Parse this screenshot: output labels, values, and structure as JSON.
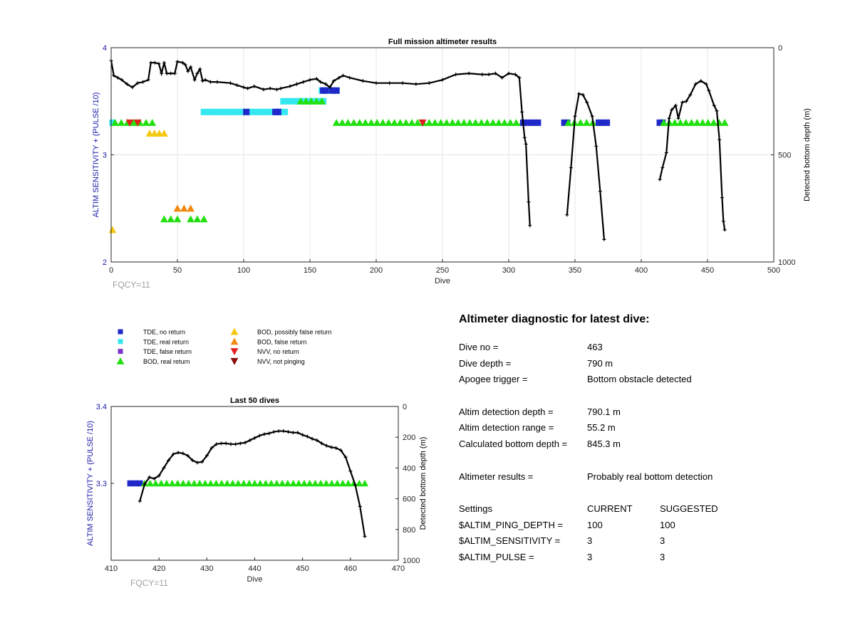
{
  "colors": {
    "tde_no_return": "#1f28c8",
    "tde_real_return": "#35e8f0",
    "tde_false_return": "#7a35c8",
    "bod_real_return": "#22e010",
    "bod_possibly_false": "#f5c810",
    "bod_false": "#f08a10",
    "nvv_no_return": "#e02020",
    "nvv_not_pinging": "#8a1010",
    "depth_line": "#000000",
    "axis_left": "#1a1aa8",
    "fqcy": "#a0a0a0"
  },
  "legend": [
    {
      "label": "TDE, no return",
      "key": "tde_no_return",
      "marker": "square"
    },
    {
      "label": "TDE, real return",
      "key": "tde_real_return",
      "marker": "square"
    },
    {
      "label": "TDE, false return",
      "key": "tde_false_return",
      "marker": "square"
    },
    {
      "label": "BOD, real return",
      "key": "bod_real_return",
      "marker": "triangle-up"
    },
    {
      "label": "BOD, possibly false return",
      "key": "bod_possibly_false",
      "marker": "triangle-up"
    },
    {
      "label": "BOD, false return",
      "key": "bod_false",
      "marker": "triangle-up"
    },
    {
      "label": "NVV, no return",
      "key": "nvv_no_return",
      "marker": "triangle-down"
    },
    {
      "label": "NVV, not pinging",
      "key": "nvv_not_pinging",
      "marker": "triangle-down"
    }
  ],
  "chart_data": [
    {
      "type": "scatter",
      "title": "Full mission altimeter results",
      "xlabel": "Dive",
      "ylabel": "ALTIM SENSITIVITY + (PULSE /10)",
      "y2label": "Detected bottom depth (m)",
      "note": "FQCY=11",
      "xlim": [
        0,
        500
      ],
      "ylim": [
        2,
        4
      ],
      "y2lim": [
        0,
        1000
      ],
      "y2_reversed": true,
      "xticks": [
        0,
        50,
        100,
        150,
        200,
        250,
        300,
        350,
        400,
        450,
        500
      ],
      "yticks": [
        2,
        3,
        4
      ],
      "y2ticks": [
        0,
        500,
        1000
      ],
      "grid": true,
      "marker_runs": [
        {
          "key": "tde_real_return",
          "marker": "square",
          "y": 3.3,
          "x_from": 1,
          "x_to": 2
        },
        {
          "key": "bod_real_return",
          "marker": "triangle-up",
          "y": 3.3,
          "x_from": 3,
          "x_to": 31
        },
        {
          "key": "nvv_no_return",
          "marker": "triangle-down",
          "y": 3.3,
          "x_from": 14,
          "x_to": 20
        },
        {
          "key": "bod_possibly_false",
          "marker": "triangle-up",
          "y": 3.2,
          "x_from": 29,
          "x_to": 40
        },
        {
          "key": "bod_possibly_false",
          "marker": "triangle-up",
          "y": 2.3,
          "x_from": 1,
          "x_to": 3
        },
        {
          "key": "bod_false",
          "marker": "triangle-up",
          "y": 2.5,
          "x_from": 50,
          "x_to": 60
        },
        {
          "key": "bod_real_return",
          "marker": "triangle-up",
          "y": 2.4,
          "x_from": 40,
          "x_to": 50
        },
        {
          "key": "bod_real_return",
          "marker": "triangle-up",
          "y": 2.4,
          "x_from": 60,
          "x_to": 70
        },
        {
          "key": "tde_real_return",
          "marker": "square",
          "y": 3.4,
          "x_from": 70,
          "x_to": 131
        },
        {
          "key": "tde_no_return",
          "marker": "square",
          "y": 3.4,
          "x_from": 102,
          "x_to": 103
        },
        {
          "key": "tde_no_return",
          "marker": "square",
          "y": 3.4,
          "x_from": 124,
          "x_to": 126
        },
        {
          "key": "tde_real_return",
          "marker": "square",
          "y": 3.5,
          "x_from": 130,
          "x_to": 160
        },
        {
          "key": "bod_real_return",
          "marker": "triangle-up",
          "y": 3.5,
          "x_from": 143,
          "x_to": 159
        },
        {
          "key": "tde_real_return",
          "marker": "square",
          "y": 3.6,
          "x_from": 159,
          "x_to": 170
        },
        {
          "key": "tde_no_return",
          "marker": "square",
          "y": 3.6,
          "x_from": 160,
          "x_to": 162
        },
        {
          "key": "tde_no_return",
          "marker": "square",
          "y": 3.6,
          "x_from": 167,
          "x_to": 170
        },
        {
          "key": "bod_real_return",
          "marker": "triangle-up",
          "y": 3.3,
          "x_from": 170,
          "x_to": 310
        },
        {
          "key": "nvv_no_return",
          "marker": "triangle-down",
          "y": 3.3,
          "x_from": 235,
          "x_to": 235
        },
        {
          "key": "tde_no_return",
          "marker": "square",
          "y": 3.3,
          "x_from": 311,
          "x_to": 322
        },
        {
          "key": "tde_no_return",
          "marker": "square",
          "y": 3.3,
          "x_from": 342,
          "x_to": 344
        },
        {
          "key": "bod_real_return",
          "marker": "triangle-up",
          "y": 3.3,
          "x_from": 345,
          "x_to": 368
        },
        {
          "key": "tde_no_return",
          "marker": "square",
          "y": 3.3,
          "x_from": 368,
          "x_to": 374
        },
        {
          "key": "tde_no_return",
          "marker": "square",
          "y": 3.3,
          "x_from": 414,
          "x_to": 416
        },
        {
          "key": "bod_real_return",
          "marker": "triangle-up",
          "y": 3.3,
          "x_from": 417,
          "x_to": 463
        }
      ],
      "depth_series": [
        [
          [
            0,
            60
          ],
          [
            2,
            130
          ],
          [
            5,
            140
          ],
          [
            8,
            150
          ],
          [
            12,
            170
          ],
          [
            16,
            185
          ],
          [
            20,
            165
          ],
          [
            24,
            160
          ],
          [
            28,
            150
          ],
          [
            30,
            70
          ],
          [
            33,
            70
          ],
          [
            36,
            75
          ],
          [
            38,
            120
          ],
          [
            40,
            70
          ],
          [
            42,
            120
          ],
          [
            45,
            120
          ],
          [
            48,
            120
          ],
          [
            50,
            65
          ],
          [
            54,
            70
          ],
          [
            56,
            80
          ],
          [
            58,
            110
          ],
          [
            60,
            90
          ],
          [
            63,
            150
          ],
          [
            65,
            120
          ],
          [
            67,
            100
          ],
          [
            69,
            155
          ],
          [
            71,
            150
          ],
          [
            75,
            160
          ],
          [
            80,
            160
          ],
          [
            90,
            165
          ],
          [
            95,
            175
          ],
          [
            100,
            185
          ],
          [
            103,
            190
          ],
          [
            108,
            180
          ],
          [
            115,
            195
          ],
          [
            120,
            190
          ],
          [
            125,
            195
          ],
          [
            128,
            190
          ],
          [
            135,
            180
          ],
          [
            140,
            170
          ],
          [
            145,
            160
          ],
          [
            150,
            150
          ],
          [
            155,
            145
          ],
          [
            158,
            160
          ],
          [
            162,
            170
          ],
          [
            165,
            185
          ],
          [
            168,
            155
          ],
          [
            172,
            140
          ],
          [
            175,
            130
          ],
          [
            180,
            140
          ],
          [
            190,
            155
          ],
          [
            200,
            165
          ],
          [
            210,
            165
          ],
          [
            220,
            165
          ],
          [
            230,
            170
          ],
          [
            240,
            165
          ],
          [
            250,
            150
          ],
          [
            260,
            125
          ],
          [
            270,
            120
          ],
          [
            280,
            125
          ],
          [
            285,
            125
          ],
          [
            290,
            120
          ],
          [
            295,
            140
          ],
          [
            300,
            120
          ],
          [
            305,
            125
          ],
          [
            308,
            140
          ],
          [
            310,
            300
          ],
          [
            312,
            420
          ],
          [
            313,
            450
          ],
          [
            315,
            720
          ],
          [
            316,
            830
          ]
        ],
        [
          [
            344,
            780
          ],
          [
            347,
            560
          ],
          [
            350,
            320
          ],
          [
            353,
            215
          ],
          [
            356,
            220
          ],
          [
            359,
            255
          ],
          [
            363,
            320
          ],
          [
            366,
            460
          ],
          [
            369,
            670
          ],
          [
            372,
            895
          ]
        ],
        [
          [
            414,
            615
          ],
          [
            416,
            560
          ],
          [
            419,
            490
          ],
          [
            421,
            330
          ],
          [
            423,
            290
          ],
          [
            426,
            270
          ],
          [
            428,
            330
          ],
          [
            431,
            255
          ],
          [
            434,
            250
          ],
          [
            437,
            220
          ],
          [
            441,
            170
          ],
          [
            445,
            155
          ],
          [
            449,
            170
          ],
          [
            451,
            200
          ],
          [
            455,
            270
          ],
          [
            457,
            295
          ],
          [
            459,
            430
          ],
          [
            461,
            700
          ],
          [
            462,
            810
          ],
          [
            463,
            850
          ]
        ]
      ]
    },
    {
      "type": "scatter",
      "title": "Last 50 dives",
      "xlabel": "Dive",
      "ylabel": "ALTIM SENSITIVITY + (PULSE /10)",
      "y2label": "Detected bottom depth (m)",
      "note": "FQCY=11",
      "xlim": [
        410,
        470
      ],
      "ylim": [
        3.2,
        3.4
      ],
      "y2lim": [
        0,
        1000
      ],
      "y2_reversed": true,
      "xticks": [
        410,
        420,
        430,
        440,
        450,
        460,
        470
      ],
      "yticks": [
        3.3,
        3.4
      ],
      "y2ticks": [
        0,
        200,
        400,
        600,
        800,
        1000
      ],
      "grid": false,
      "marker_runs": [
        {
          "key": "tde_no_return",
          "marker": "square",
          "y": 3.3,
          "x_from": 414,
          "x_to": 416
        },
        {
          "key": "bod_real_return",
          "marker": "triangle-up",
          "y": 3.3,
          "x_from": 417,
          "x_to": 463
        }
      ],
      "depth_series": [
        [
          [
            416,
            615
          ],
          [
            417,
            505
          ],
          [
            418,
            460
          ],
          [
            419,
            470
          ],
          [
            420,
            450
          ],
          [
            421,
            400
          ],
          [
            422,
            350
          ],
          [
            423,
            310
          ],
          [
            424,
            300
          ],
          [
            425,
            305
          ],
          [
            426,
            320
          ],
          [
            427,
            350
          ],
          [
            428,
            365
          ],
          [
            429,
            360
          ],
          [
            430,
            320
          ],
          [
            431,
            270
          ],
          [
            432,
            245
          ],
          [
            433,
            240
          ],
          [
            434,
            240
          ],
          [
            435,
            245
          ],
          [
            436,
            245
          ],
          [
            437,
            240
          ],
          [
            438,
            235
          ],
          [
            439,
            220
          ],
          [
            440,
            205
          ],
          [
            441,
            190
          ],
          [
            442,
            180
          ],
          [
            443,
            175
          ],
          [
            444,
            165
          ],
          [
            445,
            160
          ],
          [
            446,
            160
          ],
          [
            447,
            165
          ],
          [
            448,
            170
          ],
          [
            449,
            170
          ],
          [
            450,
            185
          ],
          [
            451,
            195
          ],
          [
            452,
            210
          ],
          [
            453,
            220
          ],
          [
            454,
            240
          ],
          [
            455,
            255
          ],
          [
            456,
            265
          ],
          [
            457,
            270
          ],
          [
            458,
            285
          ],
          [
            459,
            330
          ],
          [
            460,
            420
          ],
          [
            461,
            510
          ],
          [
            462,
            650
          ],
          [
            463,
            845
          ]
        ]
      ]
    }
  ],
  "diagnostic": {
    "title": "Altimeter diagnostic for latest dive:",
    "dive_no_label": "Dive no =",
    "dive_no": "463",
    "dive_depth_label": "Dive depth =",
    "dive_depth": "790 m",
    "apogee_label": "Apogee trigger =",
    "apogee": "Bottom obstacle detected",
    "altim_depth_label": "Altim detection depth =",
    "altim_depth": "790.1 m",
    "altim_range_label": "Altim detection range =",
    "altim_range": "55.2 m",
    "calc_bottom_label": "Calculated bottom depth =",
    "calc_bottom": "845.3 m",
    "results_label": "Altimeter results =",
    "results": "Probably real bottom detection",
    "settings_label": "Settings",
    "current_label": "CURRENT",
    "suggested_label": "SUGGESTED",
    "ping_depth_label": "$ALTIM_PING_DEPTH =",
    "ping_depth_current": "100",
    "ping_depth_suggested": "100",
    "sensitivity_label": "$ALTIM_SENSITIVITY =",
    "sensitivity_current": "3",
    "sensitivity_suggested": "3",
    "pulse_label": "$ALTIM_PULSE =",
    "pulse_current": "3",
    "pulse_suggested": "3"
  }
}
